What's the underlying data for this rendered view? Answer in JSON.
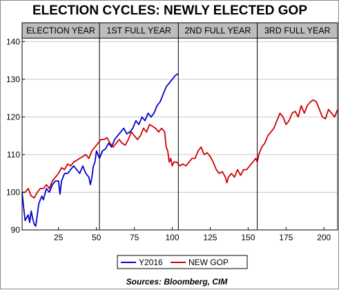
{
  "chart_data": {
    "type": "line",
    "title": "ELECTION CYCLES: NEWLY ELECTED GOP",
    "periods": [
      "ELECTION YEAR",
      "1ST FULL YEAR",
      "2ND FULL YEAR",
      "3RD FULL YEAR"
    ],
    "period_boundaries": [
      52,
      104,
      156
    ],
    "xlim": [
      1,
      209
    ],
    "ylim": [
      90,
      145
    ],
    "x_ticks": [
      25,
      50,
      75,
      100,
      125,
      150,
      175,
      200
    ],
    "y_ticks": [
      90,
      100,
      110,
      120,
      130,
      140
    ],
    "grid": true,
    "legend_position": "bottom",
    "series": [
      {
        "name": "Y2016",
        "color": "#0000cc",
        "points": [
          [
            1,
            100
          ],
          [
            2,
            96
          ],
          [
            3,
            92.5
          ],
          [
            5,
            94
          ],
          [
            6,
            92
          ],
          [
            7,
            95
          ],
          [
            8,
            93
          ],
          [
            9,
            91.5
          ],
          [
            10,
            91
          ],
          [
            11,
            94
          ],
          [
            12,
            97
          ],
          [
            14,
            99
          ],
          [
            15,
            98
          ],
          [
            17,
            101
          ],
          [
            19,
            100
          ],
          [
            21,
            102
          ],
          [
            23,
            103
          ],
          [
            25,
            103
          ],
          [
            26,
            99.5
          ],
          [
            27,
            103
          ],
          [
            29,
            105
          ],
          [
            31,
            105
          ],
          [
            33,
            106
          ],
          [
            35,
            107
          ],
          [
            37,
            106
          ],
          [
            39,
            105
          ],
          [
            41,
            107
          ],
          [
            43,
            105
          ],
          [
            45,
            104
          ],
          [
            46,
            102
          ],
          [
            47,
            104
          ],
          [
            48,
            107
          ],
          [
            49,
            108
          ],
          [
            50,
            111
          ],
          [
            52,
            109
          ],
          [
            54,
            111
          ],
          [
            56,
            111.5
          ],
          [
            58,
            113
          ],
          [
            60,
            112
          ],
          [
            62,
            114
          ],
          [
            64,
            115
          ],
          [
            66,
            116
          ],
          [
            68,
            117
          ],
          [
            70,
            115.5
          ],
          [
            72,
            116
          ],
          [
            74,
            117
          ],
          [
            76,
            119
          ],
          [
            78,
            118
          ],
          [
            80,
            120
          ],
          [
            82,
            119
          ],
          [
            84,
            121
          ],
          [
            86,
            120
          ],
          [
            88,
            121
          ],
          [
            90,
            123
          ],
          [
            92,
            124
          ],
          [
            94,
            126
          ],
          [
            96,
            128
          ],
          [
            98,
            129
          ],
          [
            100,
            130
          ],
          [
            102,
            131
          ],
          [
            104,
            131.5
          ]
        ]
      },
      {
        "name": "NEW GOP",
        "color": "#cc0000",
        "points": [
          [
            1,
            100
          ],
          [
            3,
            100
          ],
          [
            5,
            101
          ],
          [
            7,
            99
          ],
          [
            9,
            98.5
          ],
          [
            11,
            100
          ],
          [
            13,
            101
          ],
          [
            15,
            101
          ],
          [
            17,
            102
          ],
          [
            19,
            101
          ],
          [
            21,
            103
          ],
          [
            23,
            104
          ],
          [
            25,
            105
          ],
          [
            27,
            106.5
          ],
          [
            29,
            106
          ],
          [
            31,
            107.5
          ],
          [
            33,
            107
          ],
          [
            35,
            108
          ],
          [
            37,
            108.5
          ],
          [
            39,
            109
          ],
          [
            41,
            109.5
          ],
          [
            43,
            110
          ],
          [
            45,
            109
          ],
          [
            47,
            111
          ],
          [
            49,
            112
          ],
          [
            51,
            113
          ],
          [
            53,
            114
          ],
          [
            55,
            114
          ],
          [
            57,
            114.5
          ],
          [
            59,
            113
          ],
          [
            61,
            112
          ],
          [
            63,
            113
          ],
          [
            65,
            114
          ],
          [
            67,
            113
          ],
          [
            69,
            112.5
          ],
          [
            71,
            114
          ],
          [
            73,
            116
          ],
          [
            75,
            115
          ],
          [
            77,
            114
          ],
          [
            79,
            115
          ],
          [
            81,
            117
          ],
          [
            83,
            116
          ],
          [
            85,
            118
          ],
          [
            87,
            117.5
          ],
          [
            89,
            117
          ],
          [
            91,
            116
          ],
          [
            93,
            117
          ],
          [
            95,
            116
          ],
          [
            96,
            112
          ],
          [
            97,
            111
          ],
          [
            98,
            108
          ],
          [
            99,
            109
          ],
          [
            100,
            107
          ],
          [
            101,
            108
          ],
          [
            103,
            108
          ],
          [
            105,
            107
          ],
          [
            107,
            107.5
          ],
          [
            109,
            107
          ],
          [
            111,
            108
          ],
          [
            113,
            109
          ],
          [
            115,
            109
          ],
          [
            117,
            111
          ],
          [
            119,
            112
          ],
          [
            121,
            110
          ],
          [
            123,
            110.5
          ],
          [
            125,
            109.5
          ],
          [
            127,
            108
          ],
          [
            129,
            106
          ],
          [
            131,
            105
          ],
          [
            133,
            105.5
          ],
          [
            135,
            104
          ],
          [
            136,
            102.5
          ],
          [
            137,
            104
          ],
          [
            139,
            105
          ],
          [
            141,
            104
          ],
          [
            143,
            106
          ],
          [
            145,
            104.5
          ],
          [
            147,
            106
          ],
          [
            149,
            106
          ],
          [
            151,
            107
          ],
          [
            153,
            108
          ],
          [
            155,
            109
          ],
          [
            156,
            108
          ],
          [
            157,
            110
          ],
          [
            159,
            112
          ],
          [
            161,
            113
          ],
          [
            163,
            115
          ],
          [
            165,
            116
          ],
          [
            167,
            117
          ],
          [
            169,
            119
          ],
          [
            171,
            121
          ],
          [
            173,
            120
          ],
          [
            175,
            118
          ],
          [
            177,
            119
          ],
          [
            179,
            121
          ],
          [
            181,
            121.5
          ],
          [
            183,
            120
          ],
          [
            185,
            123
          ],
          [
            187,
            121
          ],
          [
            189,
            123
          ],
          [
            191,
            124
          ],
          [
            193,
            124.5
          ],
          [
            195,
            124
          ],
          [
            197,
            122
          ],
          [
            199,
            120
          ],
          [
            201,
            119.5
          ],
          [
            203,
            122
          ],
          [
            205,
            121
          ],
          [
            207,
            120
          ],
          [
            209,
            122
          ]
        ]
      }
    ]
  },
  "source": "Sources:  Bloomberg, CIM"
}
